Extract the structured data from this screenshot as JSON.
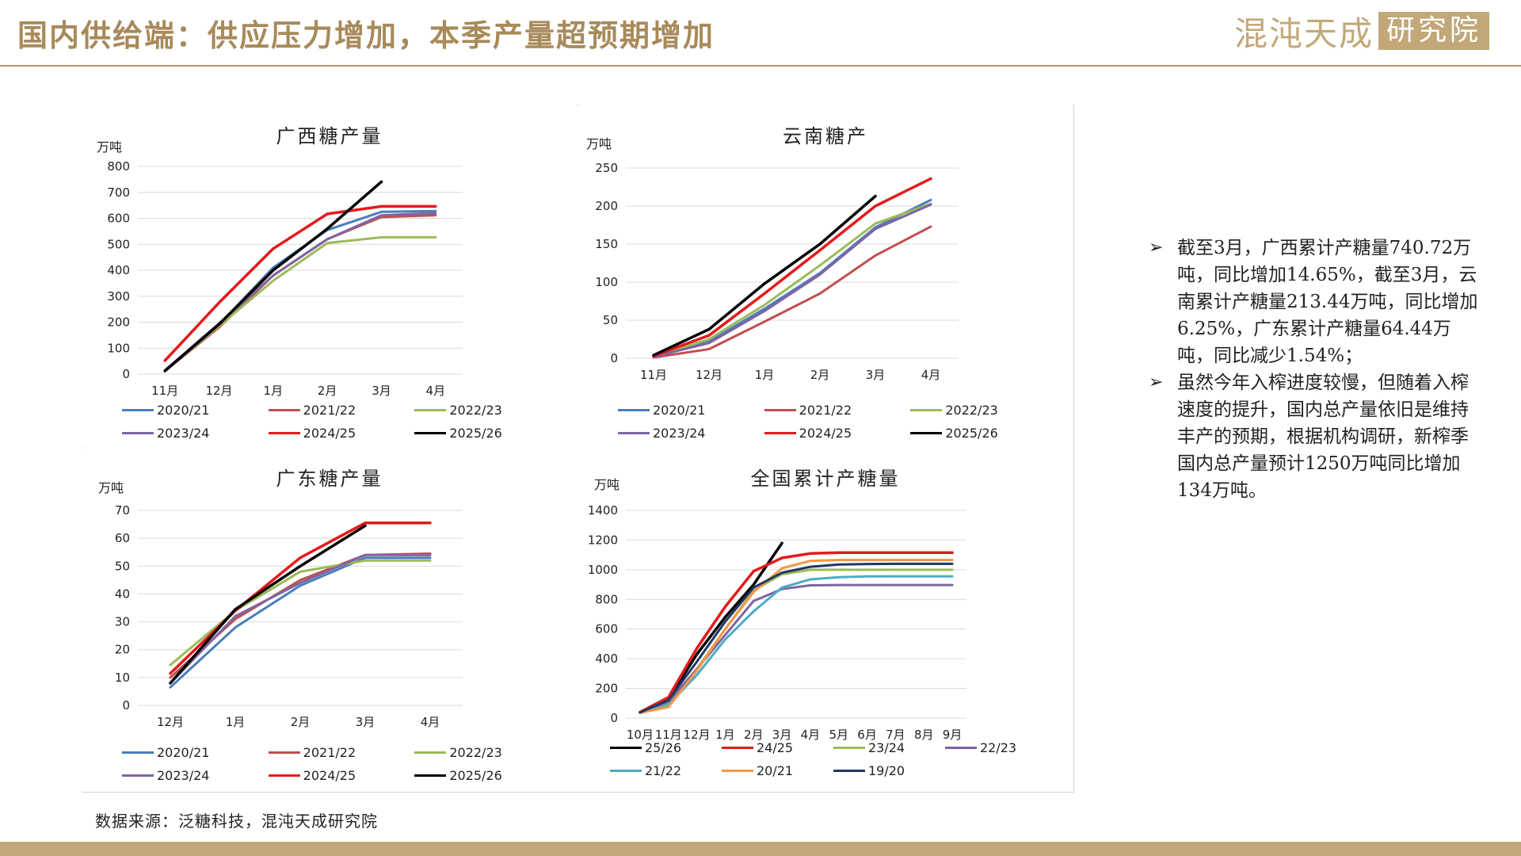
{
  "header": {
    "title": "国内供给端：供应压力增加，本季产量超预期增加",
    "logo_main": "混沌天成",
    "logo_sub": "研究院"
  },
  "notes": [
    "截至3月，广西累计产糖量740.72万吨，同比增加14.65%，截至3月，云南累计产糖量213.44万吨，同比增加6.25%，广东累计产糖量64.44万吨，同比减少1.54%；",
    "虽然今年入榨进度较慢，但随着入榨速度的提升，国内总产量依旧是维持丰产的预期，根据机构调研，新榨季国内总产量预计1250万吨同比增加134万吨。"
  ],
  "source": "数据来源：泛糖科技，混沌天成研究院",
  "chart_data": [
    {
      "id": "guangxi",
      "type": "line",
      "title": "广西糖产量",
      "ylabel": "万吨",
      "ylim": [
        0,
        800
      ],
      "yticks": [
        0,
        100,
        200,
        300,
        400,
        500,
        600,
        700,
        800
      ],
      "categories": [
        "11月",
        "12月",
        "1月",
        "2月",
        "3月",
        "4月"
      ],
      "legend_cols": 3,
      "series": [
        {
          "name": "2020/21",
          "color": "#4a7ebb",
          "values": [
            15,
            190,
            410,
            555,
            625,
            628
          ]
        },
        {
          "name": "2021/22",
          "color": "#c0504d",
          "values": [
            12,
            180,
            380,
            520,
            605,
            612
          ]
        },
        {
          "name": "2022/23",
          "color": "#9bbb59",
          "values": [
            12,
            185,
            360,
            505,
            527,
            527
          ]
        },
        {
          "name": "2023/24",
          "color": "#8064a2",
          "values": [
            15,
            195,
            380,
            520,
            612,
            620
          ]
        },
        {
          "name": "2024/25",
          "color": "#e31a1c",
          "values": [
            52,
            275,
            483,
            617,
            646,
            646
          ]
        },
        {
          "name": "2025/26",
          "color": "#000000",
          "values": [
            12,
            192,
            400,
            560,
            741,
            null
          ]
        }
      ]
    },
    {
      "id": "yunnan",
      "type": "line",
      "title": "云南糖产",
      "ylabel": "万吨",
      "ylim": [
        0,
        250
      ],
      "yticks": [
        0,
        50,
        100,
        150,
        200,
        250
      ],
      "categories": [
        "11月",
        "12月",
        "1月",
        "2月",
        "3月",
        "4月"
      ],
      "legend_cols": 3,
      "series": [
        {
          "name": "2020/21",
          "color": "#4a7ebb",
          "values": [
            2,
            22,
            65,
            112,
            172,
            208
          ]
        },
        {
          "name": "2021/22",
          "color": "#c0504d",
          "values": [
            1,
            12,
            48,
            85,
            135,
            173
          ]
        },
        {
          "name": "2022/23",
          "color": "#9bbb59",
          "values": [
            2,
            25,
            70,
            122,
            177,
            203
          ]
        },
        {
          "name": "2023/24",
          "color": "#8064a2",
          "values": [
            2,
            20,
            62,
            110,
            170,
            202
          ]
        },
        {
          "name": "2024/25",
          "color": "#e31a1c",
          "values": [
            3,
            30,
            85,
            142,
            200,
            236
          ]
        },
        {
          "name": "2025/26",
          "color": "#000000",
          "values": [
            4,
            38,
            98,
            150,
            213,
            null
          ]
        }
      ]
    },
    {
      "id": "guangdong",
      "type": "line",
      "title": "广东糖产量",
      "ylabel": "万吨",
      "ylim": [
        0,
        70
      ],
      "yticks": [
        0,
        10,
        20,
        30,
        40,
        50,
        60,
        70
      ],
      "categories": [
        "12月",
        "1月",
        "2月",
        "3月",
        "4月"
      ],
      "legend_cols": 3,
      "series": [
        {
          "name": "2020/21",
          "color": "#4a7ebb",
          "values": [
            6.5,
            28,
            43,
            53,
            53
          ]
        },
        {
          "name": "2021/22",
          "color": "#c0504d",
          "values": [
            10,
            31,
            45,
            54,
            54.5
          ]
        },
        {
          "name": "2022/23",
          "color": "#9bbb59",
          "values": [
            14.5,
            34,
            48,
            52,
            52
          ]
        },
        {
          "name": "2023/24",
          "color": "#8064a2",
          "values": [
            8,
            32,
            44,
            54,
            54
          ]
        },
        {
          "name": "2024/25",
          "color": "#e31a1c",
          "values": [
            11.5,
            34,
            53,
            65.5,
            65.5
          ]
        },
        {
          "name": "2025/26",
          "color": "#000000",
          "values": [
            8,
            34.5,
            50,
            64.5,
            null
          ]
        }
      ]
    },
    {
      "id": "national",
      "type": "line",
      "title": "全国累计产糖量",
      "ylabel": "万吨",
      "ylim": [
        0,
        1400
      ],
      "yticks": [
        0,
        200,
        400,
        600,
        800,
        1000,
        1200,
        1400
      ],
      "categories": [
        "10月",
        "11月",
        "12月",
        "1月",
        "2月",
        "3月",
        "4月",
        "5月",
        "6月",
        "7月",
        "8月",
        "9月"
      ],
      "legend_cols": 4,
      "series": [
        {
          "name": "25/26",
          "color": "#000000",
          "values": [
            40,
            125,
            430,
            680,
            900,
            1180,
            null,
            null,
            null,
            null,
            null,
            null
          ]
        },
        {
          "name": "24/25",
          "color": "#e31a1c",
          "values": [
            40,
            140,
            470,
            750,
            990,
            1080,
            1110,
            1115,
            1115,
            1115,
            1115,
            1115
          ]
        },
        {
          "name": "23/24",
          "color": "#9bbb59",
          "values": [
            40,
            105,
            330,
            600,
            860,
            970,
            1000,
            1000,
            1000,
            1000,
            1000,
            1000
          ]
        },
        {
          "name": "22/23",
          "color": "#8064a2",
          "values": [
            40,
            110,
            330,
            560,
            790,
            870,
            895,
            897,
            897,
            897,
            897,
            897
          ]
        },
        {
          "name": "21/22",
          "color": "#4bacc6",
          "values": [
            35,
            90,
            290,
            530,
            720,
            880,
            935,
            950,
            955,
            956,
            956,
            956
          ]
        },
        {
          "name": "20/21",
          "color": "#f79646",
          "values": [
            35,
            75,
            320,
            600,
            850,
            1010,
            1060,
            1066,
            1066,
            1066,
            1066,
            1066
          ]
        },
        {
          "name": "19/20",
          "color": "#1f3864",
          "values": [
            38,
            120,
            380,
            650,
            880,
            980,
            1020,
            1035,
            1039,
            1040,
            1040,
            1040
          ]
        }
      ]
    }
  ]
}
